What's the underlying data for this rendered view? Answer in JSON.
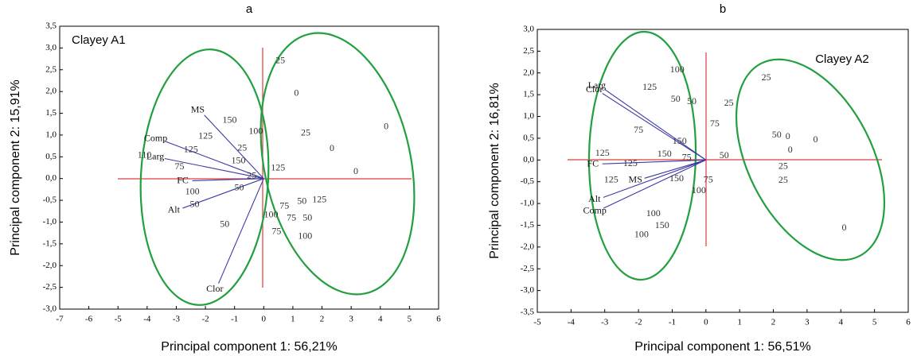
{
  "chart_data": [
    {
      "type": "scatter",
      "title": "a",
      "annotation": "Clayey A1",
      "x_label": "Principal component 1: 56,21%",
      "y_label": "Principal component 2: 15,91%",
      "xlim": [
        -7,
        6
      ],
      "ylim": [
        -3.0,
        3.5
      ],
      "xticks": [
        -7,
        -6,
        -5,
        -4,
        -3,
        -2,
        -1,
        0,
        1,
        2,
        3,
        4,
        5,
        6
      ],
      "yticks": [
        {
          "value": -3.0,
          "label": "-3,0"
        },
        {
          "value": -2.5,
          "label": "-2,5"
        },
        {
          "value": -2.0,
          "label": "-2,0"
        },
        {
          "value": -1.5,
          "label": "-1,5"
        },
        {
          "value": -1.0,
          "label": "-1,0"
        },
        {
          "value": -0.5,
          "label": "-0,5"
        },
        {
          "value": 0,
          "label": "0,0"
        },
        {
          "value": 0.5,
          "label": "0,5"
        },
        {
          "value": 1.0,
          "label": "1,0"
        },
        {
          "value": 1.5,
          "label": "1,5"
        },
        {
          "value": 2.0,
          "label": "2,0"
        },
        {
          "value": 2.5,
          "label": "2,5"
        },
        {
          "value": 3.0,
          "label": "3,0"
        },
        {
          "value": 3.5,
          "label": "3,5"
        }
      ],
      "points": {
        "color": "#333333",
        "labels": [
          "25",
          "0",
          "0",
          "100",
          "25",
          "0",
          "0",
          "125",
          "150",
          "125",
          "25",
          "150",
          "125",
          "110",
          "75",
          "25",
          "50",
          "100",
          "50",
          "50",
          "75",
          "50",
          "125",
          "100",
          "75",
          "50",
          "75",
          "100"
        ],
        "x": [
          0.57,
          1.12,
          4.2,
          -0.27,
          1.44,
          2.34,
          3.16,
          0.49,
          -1.17,
          -2.0,
          -0.74,
          -0.87,
          -2.5,
          -4.09,
          -2.89,
          -0.41,
          -0.84,
          -2.45,
          -2.37,
          -1.34,
          0.71,
          1.31,
          1.91,
          0.25,
          0.95,
          1.5,
          0.44,
          1.42
        ],
        "y": [
          2.7,
          1.95,
          1.19,
          1.08,
          1.04,
          0.68,
          0.15,
          0.24,
          1.33,
          0.97,
          0.69,
          0.4,
          0.66,
          0.53,
          0.26,
          0.05,
          -0.22,
          -0.31,
          -0.6,
          -1.06,
          -0.64,
          -0.53,
          -0.49,
          -0.84,
          -0.91,
          -0.91,
          -1.22,
          -1.33
        ]
      },
      "vectors": {
        "color": "#3b3ba6",
        "names": [
          "MS",
          "Comp",
          "Larg",
          "FC",
          "Alt",
          "Clor"
        ],
        "x": [
          -2.04,
          -3.4,
          -3.4,
          -2.45,
          -2.78,
          -1.55
        ],
        "y": [
          1.46,
          0.86,
          0.46,
          -0.05,
          -0.68,
          -2.41
        ]
      }
    },
    {
      "type": "scatter",
      "title": "b",
      "annotation": "Clayey A2",
      "x_label": "Principal component 1: 56,51%",
      "y_label": "Principal component 2: 16,81%",
      "xlim": [
        -5,
        6
      ],
      "ylim": [
        -3.5,
        3.0
      ],
      "xticks": [
        -5,
        -4,
        -3,
        -2,
        -1,
        0,
        1,
        2,
        3,
        4,
        5,
        6
      ],
      "yticks": [
        {
          "value": -3.5,
          "label": "-3,5"
        },
        {
          "value": -3.0,
          "label": "-3,0"
        },
        {
          "value": -2.5,
          "label": "-2,5"
        },
        {
          "value": -2.0,
          "label": "-2,0"
        },
        {
          "value": -1.5,
          "label": "-1,5"
        },
        {
          "value": -1.0,
          "label": "-1,0"
        },
        {
          "value": -0.5,
          "label": "-0,5"
        },
        {
          "value": 0,
          "label": "0,0"
        },
        {
          "value": 0.5,
          "label": "0,5"
        },
        {
          "value": 1.0,
          "label": "1,0"
        },
        {
          "value": 1.5,
          "label": "1,5"
        },
        {
          "value": 2.0,
          "label": "2,0"
        },
        {
          "value": 2.5,
          "label": "2,5"
        },
        {
          "value": 3.0,
          "label": "3,0"
        }
      ],
      "points": {
        "color": "#333333",
        "labels": [
          "100",
          "125",
          "50",
          "50",
          "25",
          "25",
          "75",
          "75",
          "150",
          "50",
          "0",
          "0",
          "0",
          "150",
          "75",
          "50",
          "125",
          "25",
          "25",
          "150",
          "75",
          "100",
          "125",
          "100",
          "150",
          "100",
          "0",
          "125"
        ],
        "x": [
          -0.85,
          -1.67,
          -0.9,
          -0.42,
          0.68,
          1.79,
          0.26,
          -2.0,
          -0.78,
          2.1,
          2.43,
          3.25,
          2.5,
          -1.23,
          -0.57,
          0.54,
          -2.24,
          2.29,
          2.29,
          -0.87,
          0.07,
          -0.21,
          -2.81,
          -1.56,
          -1.3,
          -1.91,
          4.1,
          -3.07
        ],
        "y": [
          2.06,
          1.66,
          1.39,
          1.33,
          1.3,
          1.88,
          0.82,
          0.68,
          0.42,
          0.57,
          0.53,
          0.46,
          0.22,
          0.13,
          0.05,
          0.09,
          -0.09,
          -0.15,
          -0.47,
          -0.44,
          -0.46,
          -0.71,
          -0.46,
          -1.24,
          -1.51,
          -1.72,
          -1.57,
          0.15
        ]
      },
      "vectors": {
        "color": "#3b3ba6",
        "names": [
          "Larg",
          "Clor",
          "FC",
          "MS",
          "Alt",
          "Comp"
        ],
        "x": [
          -3.0,
          -3.07,
          -3.07,
          -1.82,
          -3.04,
          -3.04
        ],
        "y": [
          1.62,
          1.53,
          -0.09,
          -0.42,
          -0.86,
          -1.11
        ]
      }
    }
  ]
}
